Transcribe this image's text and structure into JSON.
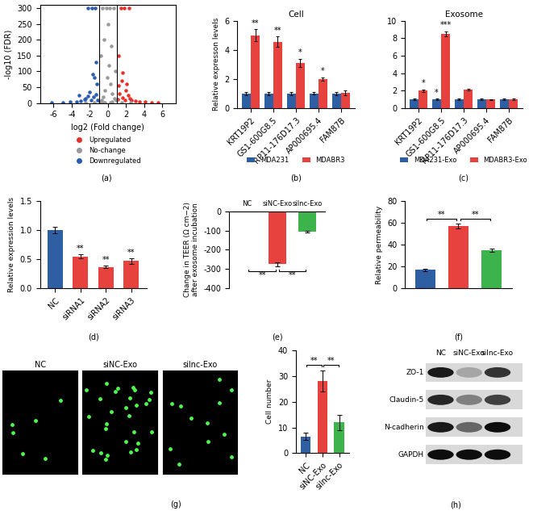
{
  "chart_data": [
    {
      "type": "scatter",
      "panel_label": "(a)",
      "xlabel": "log2 (Fold change)",
      "ylabel": "-log10 (FDR)",
      "xlim": [
        -7.5,
        7.5
      ],
      "xticks": [
        -6,
        -4,
        -2,
        0,
        2,
        4,
        6
      ],
      "ylim": [
        0,
        310
      ],
      "yticks": [
        0,
        50,
        100,
        150,
        200,
        250,
        300
      ],
      "thresholds": [
        -1,
        1
      ],
      "legend": "bottom",
      "series": [
        {
          "name": "Upregulated",
          "color": "#e8302a",
          "x": [
            1.1,
            1.3,
            1.6,
            1.9,
            2.2,
            2.6,
            3.0,
            3.5,
            4.1,
            4.8,
            5.5,
            1.2,
            1.5,
            2.0,
            2.4,
            1.4,
            1.8,
            2.3,
            1.2,
            1.6,
            2.1
          ],
          "y": [
            12,
            30,
            18,
            8,
            25,
            10,
            6,
            5,
            3,
            2,
            1,
            55,
            70,
            40,
            15,
            300,
            300,
            300,
            150,
            95,
            60
          ]
        },
        {
          "name": "No-change",
          "color": "#999999",
          "x": [
            -0.9,
            -0.7,
            -0.5,
            -0.3,
            -0.1,
            0.1,
            0.3,
            0.5,
            0.7,
            0.9,
            -0.8,
            -0.4,
            0.0,
            0.4,
            0.8,
            -0.6,
            -0.2,
            0.2,
            0.6,
            -0.5,
            0.5,
            -0.3,
            0.3,
            -1.5,
            1.5,
            -2.5,
            2.5
          ],
          "y": [
            5,
            10,
            20,
            40,
            80,
            120,
            60,
            30,
            15,
            8,
            150,
            200,
            250,
            180,
            100,
            300,
            300,
            300,
            300,
            2,
            3,
            1,
            2,
            0.5,
            0.8,
            0.3,
            0.4
          ]
        },
        {
          "name": "Downregulated",
          "color": "#2a5db0",
          "x": [
            -1.1,
            -1.3,
            -1.6,
            -1.9,
            -2.2,
            -2.6,
            -3.0,
            -3.5,
            -4.2,
            -5.0,
            -6.2,
            -1.2,
            -1.5,
            -2.0,
            -2.5,
            -1.4,
            -1.8,
            -2.2,
            -1.3,
            -1.7,
            -3.2
          ],
          "y": [
            10,
            28,
            20,
            9,
            22,
            11,
            7,
            4,
            3,
            2,
            1,
            60,
            80,
            35,
            14,
            300,
            300,
            300,
            130,
            90,
            25
          ]
        }
      ]
    },
    {
      "type": "bar",
      "panel_label": "(b)",
      "title": "Cell",
      "ylabel": "Relative expresson levels",
      "categories": [
        "KRT19P2",
        "GS1-600G8.5",
        "RP11-176D17.3",
        "AP000695.4",
        "FAM87B"
      ],
      "series": [
        {
          "name": "MDA231",
          "color": "#2e5fa3",
          "values": [
            1,
            1,
            1,
            1,
            1
          ],
          "errors": [
            0.1,
            0.1,
            0.1,
            0.08,
            0.1
          ]
        },
        {
          "name": "MDABR3",
          "color": "#e8423f",
          "values": [
            5.0,
            4.55,
            3.1,
            2.0,
            1.05
          ],
          "errors": [
            0.4,
            0.35,
            0.3,
            0.12,
            0.15
          ],
          "marks": [
            "**",
            "**",
            "*",
            "*",
            null
          ]
        }
      ],
      "ylim": [
        0,
        6
      ],
      "yticks": [
        0,
        2,
        4,
        6
      ],
      "legend": "bottom"
    },
    {
      "type": "bar",
      "panel_label": "(c)",
      "title": "Exosome",
      "categories": [
        "KRT19P2",
        "GS1-600G8.5",
        "RP11-176D17.3",
        "AP000695.4",
        "FAM87B"
      ],
      "series": [
        {
          "name": "MDA231-Exo",
          "color": "#2e5fa3",
          "values": [
            1,
            1,
            1,
            1,
            1
          ],
          "errors": [
            0.1,
            0.1,
            0.1,
            0.08,
            0.1
          ],
          "marks": [
            null,
            "*",
            null,
            null,
            null
          ]
        },
        {
          "name": "MDABR3-Exo",
          "color": "#e8423f",
          "values": [
            2.0,
            8.5,
            2.1,
            1.0,
            1.05
          ],
          "errors": [
            0.15,
            0.3,
            0.1,
            0.05,
            0.1
          ],
          "marks": [
            "*",
            "***",
            null,
            null,
            null
          ]
        }
      ],
      "ylim": [
        0,
        10
      ],
      "yticks": [
        0,
        2,
        4,
        6,
        8,
        10
      ],
      "legend": "bottom"
    },
    {
      "type": "bar",
      "panel_label": "(d)",
      "ylabel": "Relative expression levels",
      "categories": [
        "NC",
        "siRNA1",
        "siRNA2",
        "siRNA3"
      ],
      "values": [
        1.0,
        0.55,
        0.37,
        0.47
      ],
      "errors": [
        0.05,
        0.03,
        0.02,
        0.05
      ],
      "colors": [
        "#2e5fa3",
        "#e8423f",
        "#e8423f",
        "#e8423f"
      ],
      "marks": [
        null,
        "**",
        "**",
        "**"
      ],
      "ylim": [
        0,
        1.5
      ],
      "yticks": [
        {
          "value": 0,
          "label": "0.0"
        },
        {
          "value": 0.5,
          "label": "0.5"
        },
        {
          "value": 1.0,
          "label": "1.0"
        },
        {
          "value": 1.5,
          "label": "1.5"
        }
      ]
    },
    {
      "type": "bar",
      "panel_label": "(e)",
      "ylabel": "Change in TEER (Ω cm−2)\nafter exosome incubation",
      "categories": [
        "NC",
        "siNC-Exo",
        "silnc-Exo"
      ],
      "values": [
        0,
        -275,
        -105
      ],
      "errors": [
        2,
        12,
        5
      ],
      "colors": [
        "#2e5fa3",
        "#e8423f",
        "#3cb44b"
      ],
      "comparisons": [
        "**",
        "**"
      ],
      "ylim": [
        -400,
        0
      ],
      "yticks": [
        -400,
        -300,
        -200,
        -100,
        0
      ]
    },
    {
      "type": "bar",
      "panel_label": "(f)",
      "ylabel": "Relative permeability",
      "categories": [
        null,
        null,
        null
      ],
      "values": [
        17,
        57,
        35
      ],
      "errors": [
        1,
        2,
        1.5
      ],
      "colors": [
        "#2e5fa3",
        "#e8423f",
        "#3cb44b"
      ],
      "comparisons": [
        "**",
        "**"
      ],
      "ylim": [
        0,
        80
      ],
      "yticks": [
        0,
        20,
        40,
        60,
        80
      ]
    },
    {
      "type": "bar",
      "ylabel": "Cell number",
      "categories": [
        "NC",
        "siNC-Exo",
        "silnc-Exo"
      ],
      "values": [
        6.5,
        28,
        12
      ],
      "errors": [
        1.5,
        4,
        3
      ],
      "colors": [
        "#2e5fa3",
        "#e8423f",
        "#3cb44b"
      ],
      "comparisons": [
        "**",
        "**"
      ],
      "ylim": [
        0,
        40
      ],
      "yticks": [
        0,
        10,
        20,
        30,
        40
      ]
    }
  ],
  "micrographs": {
    "panel_label": "(g)",
    "labels": [
      "NC",
      "siNC-Exo",
      "silnc-Exo"
    ]
  },
  "blot": {
    "panel_label": "(h)",
    "columns": [
      "NC",
      "siNC-Exo",
      "silnc-Exo"
    ],
    "rows": [
      "ZO-1",
      "Claudin-5",
      "N-cadherin",
      "GAPDH"
    ]
  }
}
